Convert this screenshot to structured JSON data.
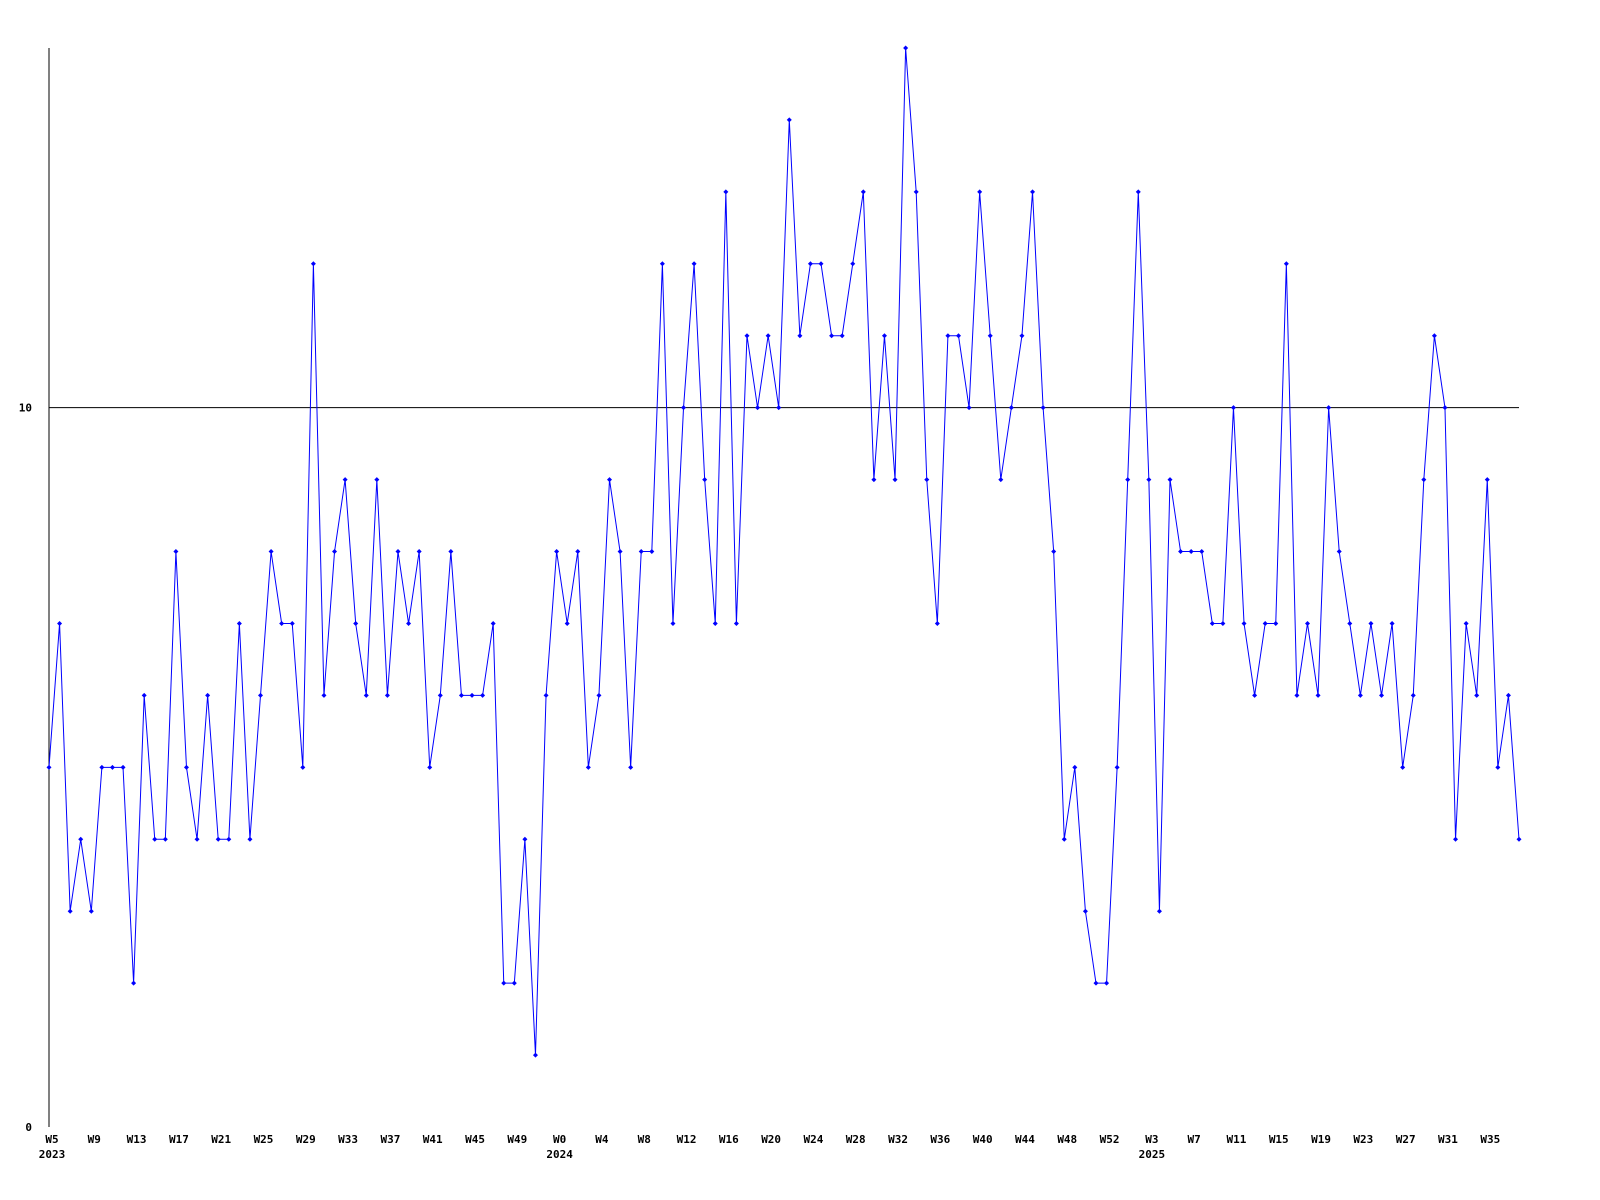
{
  "chart_data": {
    "type": "line",
    "color": "#0000ff",
    "categories": [
      [
        "W5",
        "2023"
      ],
      null,
      null,
      null,
      "W9",
      null,
      null,
      null,
      "W13",
      null,
      null,
      null,
      "W17",
      null,
      null,
      null,
      "W21",
      null,
      null,
      null,
      "W25",
      null,
      null,
      null,
      "W29",
      null,
      null,
      null,
      "W33",
      null,
      null,
      null,
      "W37",
      null,
      null,
      null,
      "W41",
      null,
      null,
      null,
      "W45",
      null,
      null,
      null,
      "W49",
      null,
      null,
      null,
      [
        "W0",
        "2024"
      ],
      null,
      null,
      null,
      "W4",
      null,
      null,
      null,
      "W8",
      null,
      null,
      null,
      "W12",
      null,
      null,
      null,
      "W16",
      null,
      null,
      null,
      "W20",
      null,
      null,
      null,
      "W24",
      null,
      null,
      null,
      "W28",
      null,
      null,
      null,
      "W32",
      null,
      null,
      null,
      "W36",
      null,
      null,
      null,
      "W40",
      null,
      null,
      null,
      "W44",
      null,
      null,
      null,
      "W48",
      null,
      null,
      null,
      "W52",
      null,
      null,
      null,
      [
        "W3",
        "2025"
      ],
      null,
      null,
      null,
      "W7",
      null,
      null,
      null,
      "W11",
      null,
      null,
      null,
      "W15",
      null,
      null,
      null,
      "W19",
      null,
      null,
      null,
      "W23",
      null,
      null,
      null,
      "W27",
      null,
      null,
      null,
      "W31",
      null,
      null,
      null,
      "W35",
      null,
      null,
      null
    ],
    "values": [
      5,
      7,
      3,
      4,
      3,
      5,
      5,
      5,
      2,
      6,
      4,
      4,
      8,
      5,
      4,
      6,
      4,
      4,
      7,
      4,
      6,
      8,
      7,
      7,
      5,
      12,
      6,
      8,
      9,
      7,
      6,
      9,
      6,
      8,
      7,
      8,
      5,
      6,
      8,
      6,
      6,
      6,
      7,
      2,
      2,
      4,
      1,
      6,
      8,
      7,
      8,
      5,
      6,
      9,
      8,
      5,
      8,
      8,
      12,
      7,
      10,
      12,
      9,
      7,
      13,
      7,
      11,
      10,
      11,
      10,
      14,
      11,
      12,
      12,
      11,
      11,
      12,
      13,
      9,
      11,
      9,
      15,
      13,
      9,
      7,
      11,
      11,
      10,
      13,
      11,
      9,
      10,
      11,
      13,
      10,
      8,
      4,
      5,
      3,
      2,
      2,
      5,
      9,
      13,
      9,
      3,
      9,
      8,
      8,
      8,
      7,
      7,
      10,
      7,
      6,
      7,
      7,
      12,
      6,
      7,
      6,
      10,
      8,
      7,
      6,
      7,
      6,
      7,
      5,
      6,
      9,
      11,
      10,
      4,
      7,
      6,
      9,
      5,
      6,
      4
    ],
    "ylim": [
      0,
      15
    ],
    "yticks": [
      0,
      10
    ],
    "grid": true
  }
}
